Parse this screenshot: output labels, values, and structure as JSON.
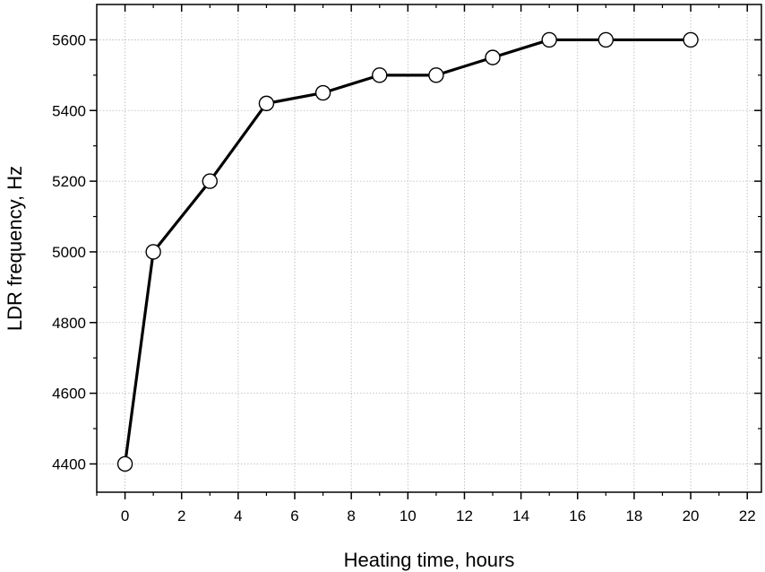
{
  "chart_data": {
    "type": "line",
    "title": "",
    "xlabel": "Heating time, hours",
    "ylabel": "LDR frequency, Hz",
    "xlim": [
      -1,
      22.5
    ],
    "ylim": [
      4320,
      5700
    ],
    "xticks": [
      0,
      2,
      4,
      6,
      8,
      10,
      12,
      14,
      16,
      18,
      20,
      22
    ],
    "yticks": [
      4400,
      4600,
      4800,
      5000,
      5200,
      5400,
      5600
    ],
    "grid": true,
    "series": [
      {
        "x": [
          0,
          1,
          3,
          5,
          7,
          9,
          11,
          13,
          15,
          17,
          20
        ],
        "y": [
          4400,
          5000,
          5200,
          5420,
          5450,
          5500,
          5500,
          5550,
          5600,
          5600,
          5600
        ],
        "marker": "open-circle",
        "line_color": "#000000"
      }
    ]
  }
}
